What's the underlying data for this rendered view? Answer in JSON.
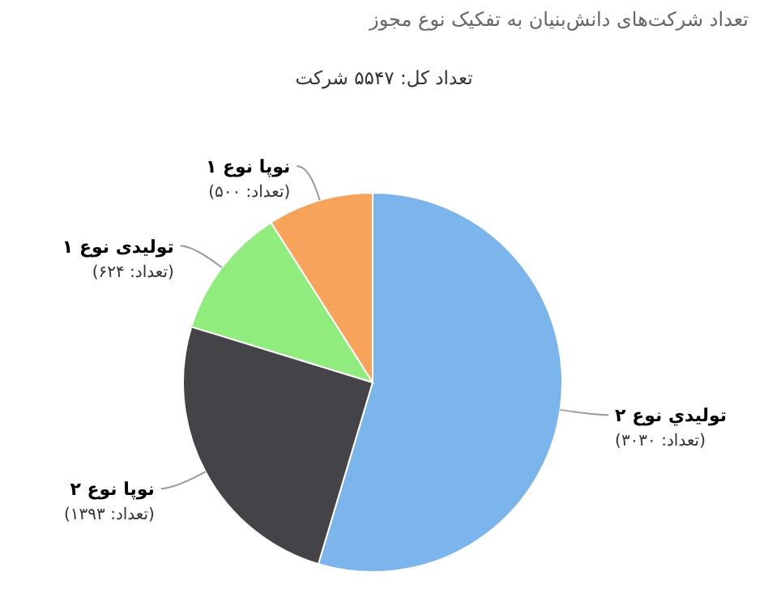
{
  "chart_data": {
    "type": "pie",
    "title": "تعداد شرکت‌های دانش‌بنیان به تفکیک نوع مجوز",
    "subtitle": "تعداد کل: ۵۵۴۷ شرکت",
    "categories": [
      "تولیدي نوع ۲",
      "نوپا نوع ۲",
      "تولیدی نوع ۱",
      "نوپا نوع ۱"
    ],
    "values": [
      3030,
      1393,
      624,
      500
    ],
    "colors": [
      "#7cb5ec",
      "#434348",
      "#90ed7d",
      "#f7a35c"
    ],
    "value_labels": [
      "(تعداد: ۳۰۳۰)",
      "(تعداد: ۱۳۹۳)",
      "(تعداد: ۶۲۴)",
      "(تعداد: ۵۰۰)"
    ]
  }
}
